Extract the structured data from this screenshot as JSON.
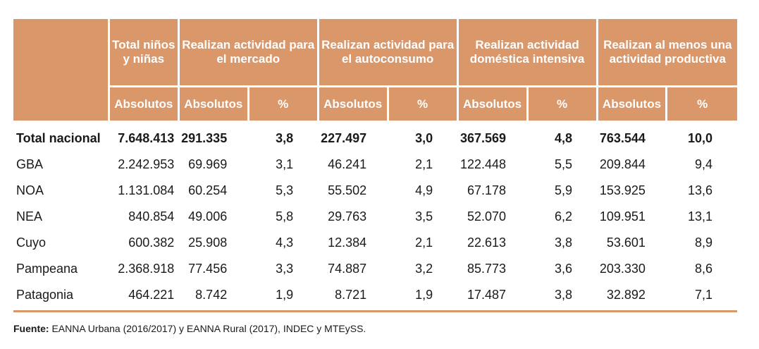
{
  "header": {
    "group_labels": [
      "Total niños y niñas",
      "Realizan actividad para el mercado",
      "Realizan actividad para el autoconsumo",
      "Realizan actividad doméstica intensiva",
      "Realizan al menos una actividad productiva"
    ],
    "sub_labels": [
      "Absolutos",
      "Absolutos",
      "%",
      "Absolutos",
      "%",
      "Absolutos",
      "%",
      "Absolutos",
      "%"
    ]
  },
  "rows": [
    {
      "name": "Total nacional",
      "values": [
        "7.648.413",
        "291.335",
        "3,8",
        "227.497",
        "3,0",
        "367.569",
        "4,8",
        "763.544",
        "10,0"
      ]
    },
    {
      "name": "GBA",
      "values": [
        "2.242.953",
        "69.969",
        "3,1",
        "46.241",
        "2,1",
        "122.448",
        "5,5",
        "209.844",
        "9,4"
      ]
    },
    {
      "name": "NOA",
      "values": [
        "1.131.084",
        "60.254",
        "5,3",
        "55.502",
        "4,9",
        "67.178",
        "5,9",
        "153.925",
        "13,6"
      ]
    },
    {
      "name": "NEA",
      "values": [
        "840.854",
        "49.006",
        "5,8",
        "29.763",
        "3,5",
        "52.070",
        "6,2",
        "109.951",
        "13,1"
      ]
    },
    {
      "name": "Cuyo",
      "values": [
        "600.382",
        "25.908",
        "4,3",
        "12.384",
        "2,1",
        "22.613",
        "3,8",
        "53.601",
        "8,9"
      ]
    },
    {
      "name": "Pampeana",
      "values": [
        "2.368.918",
        "77.456",
        "3,3",
        "74.887",
        "3,2",
        "85.773",
        "3,6",
        "203.330",
        "8,6"
      ]
    },
    {
      "name": "Patagonia",
      "values": [
        "464.221",
        "8.742",
        "1,9",
        "8.721",
        "1,9",
        "17.487",
        "3,8",
        "32.892",
        "7,1"
      ]
    }
  ],
  "source": {
    "label": "Fuente:",
    "text": " EANNA Urbana (2016/2017) y EANNA Rural (2017), INDEC y MTEySS."
  }
}
